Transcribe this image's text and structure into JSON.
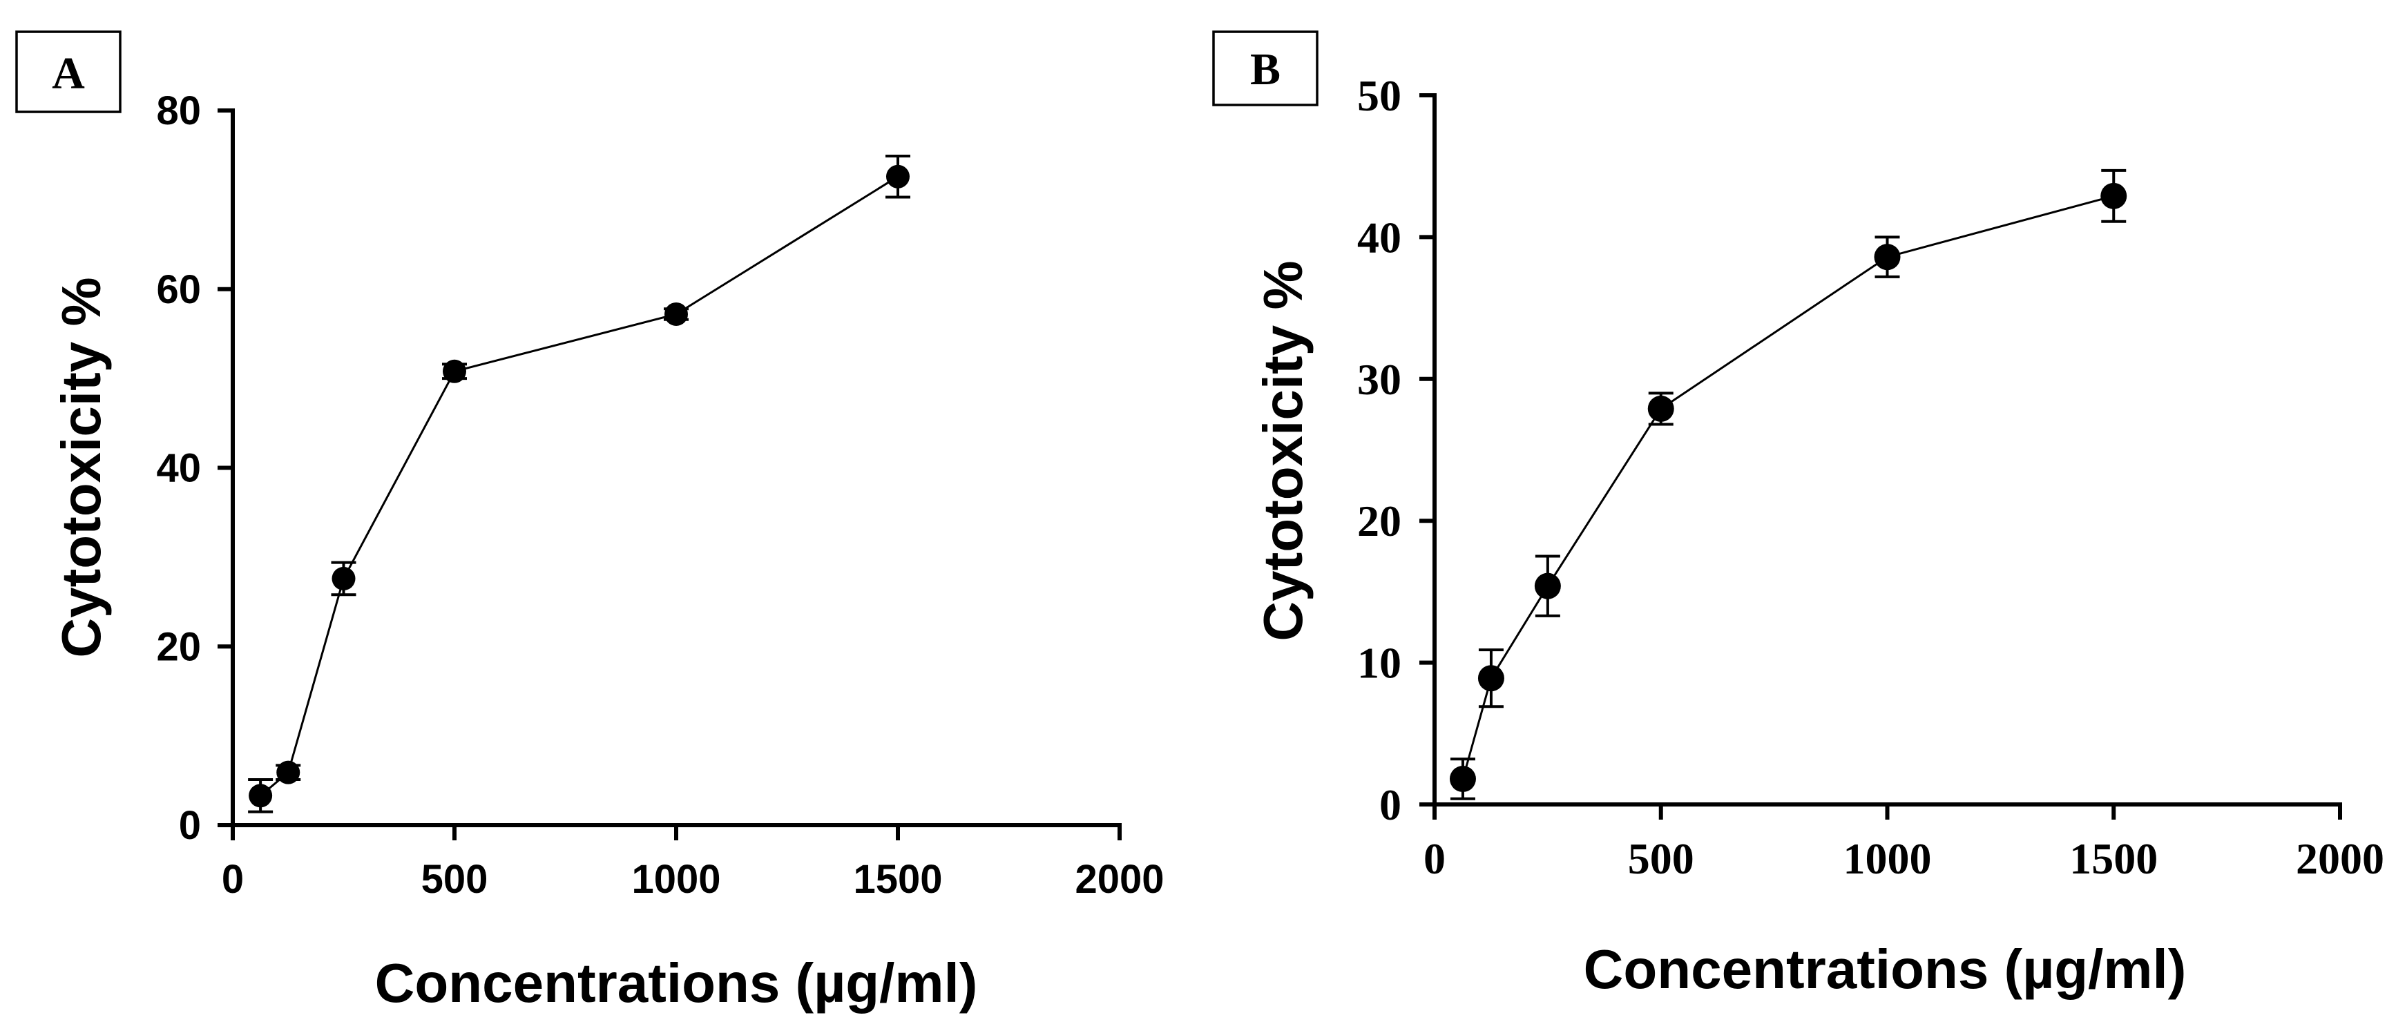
{
  "chart_data": [
    {
      "type": "line",
      "panel_label": "A",
      "title": "",
      "xlabel": "Concentrations (µg/ml)",
      "ylabel": "Cytotoxicity %",
      "xlim": [
        0,
        2000
      ],
      "ylim": [
        0,
        80
      ],
      "xticks": [
        0,
        500,
        1000,
        1500,
        2000
      ],
      "yticks": [
        0,
        20,
        40,
        60,
        80
      ],
      "grid": false,
      "series": [
        {
          "name": "Cytotoxicity",
          "x": [
            62.5,
            125,
            250,
            500,
            1000,
            1500
          ],
          "y": [
            3.3,
            5.9,
            27.6,
            50.8,
            57.2,
            72.6
          ],
          "error": [
            1.8,
            0.8,
            1.8,
            0.8,
            0.6,
            2.3
          ]
        }
      ]
    },
    {
      "type": "line",
      "panel_label": "B",
      "title": "",
      "xlabel": "Concentrations (µg/ml)",
      "ylabel": "Cytotoxicity %",
      "xlim": [
        0,
        2000
      ],
      "ylim": [
        0,
        50
      ],
      "xticks": [
        0,
        500,
        1000,
        1500,
        2000
      ],
      "yticks": [
        0,
        10,
        20,
        30,
        40,
        50
      ],
      "grid": false,
      "series": [
        {
          "name": "Cytotoxicity",
          "x": [
            62.5,
            125,
            250,
            500,
            1000,
            1500
          ],
          "y": [
            1.8,
            8.9,
            15.4,
            27.9,
            38.6,
            42.9
          ],
          "error": [
            1.4,
            2.0,
            2.1,
            1.1,
            1.4,
            1.8
          ]
        }
      ]
    }
  ]
}
